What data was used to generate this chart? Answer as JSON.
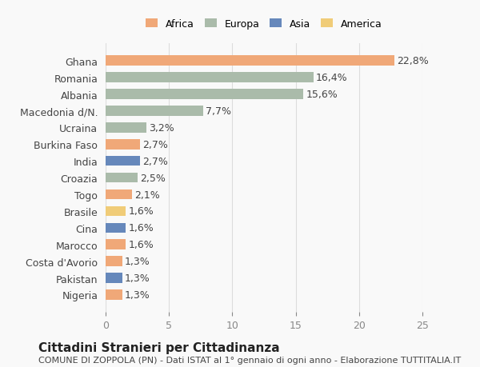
{
  "countries": [
    "Nigeria",
    "Pakistan",
    "Costa d'Avorio",
    "Marocco",
    "Cina",
    "Brasile",
    "Togo",
    "Croazia",
    "India",
    "Burkina Faso",
    "Ucraina",
    "Macedonia d/N.",
    "Albania",
    "Romania",
    "Ghana"
  ],
  "values": [
    1.3,
    1.3,
    1.3,
    1.6,
    1.6,
    1.6,
    2.1,
    2.5,
    2.7,
    2.7,
    3.2,
    7.7,
    15.6,
    16.4,
    22.8
  ],
  "labels": [
    "1,3%",
    "1,3%",
    "1,3%",
    "1,6%",
    "1,6%",
    "1,6%",
    "2,1%",
    "2,5%",
    "2,7%",
    "2,7%",
    "3,2%",
    "7,7%",
    "15,6%",
    "16,4%",
    "22,8%"
  ],
  "continents": [
    "Africa",
    "Asia",
    "Africa",
    "Africa",
    "Asia",
    "America",
    "Africa",
    "Europa",
    "Asia",
    "Africa",
    "Europa",
    "Europa",
    "Europa",
    "Europa",
    "Africa"
  ],
  "colors": {
    "Africa": "#F0A878",
    "Europa": "#AABBAA",
    "Asia": "#6688BB",
    "America": "#F0CC78"
  },
  "legend_colors": {
    "Africa": "#F0A878",
    "Europa": "#AABBAA",
    "Asia": "#6688BB",
    "America": "#F0CC78"
  },
  "title": "Cittadini Stranieri per Cittadinanza",
  "subtitle": "COMUNE DI ZOPPOLA (PN) - Dati ISTAT al 1° gennaio di ogni anno - Elaborazione TUTTITALIA.IT",
  "xlim": [
    0,
    25
  ],
  "xticks": [
    0,
    5,
    10,
    15,
    20,
    25
  ],
  "background_color": "#f9f9f9",
  "bar_height": 0.6,
  "label_fontsize": 9,
  "ytick_fontsize": 9,
  "title_fontsize": 11,
  "subtitle_fontsize": 8
}
